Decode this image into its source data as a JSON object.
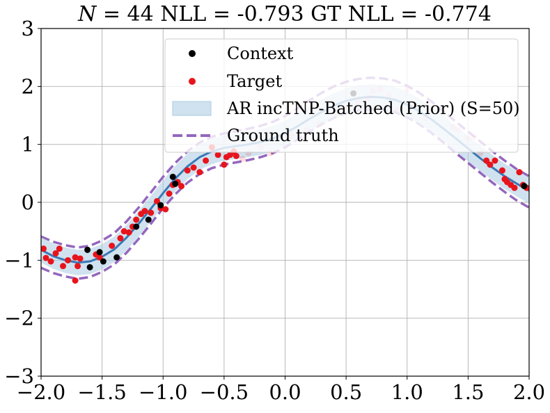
{
  "chart_data": {
    "type": "scatter",
    "title_parts": {
      "n_symbol": "N",
      "n_rest": " = 44 NLL = -0.793 GT NLL = -0.774"
    },
    "xlim": [
      -2.0,
      2.0
    ],
    "ylim": [
      -3,
      3
    ],
    "x_ticks": [
      -2.0,
      -1.5,
      -1.0,
      -0.5,
      0.0,
      0.5,
      1.0,
      1.5,
      2.0
    ],
    "y_ticks": [
      -3,
      -2,
      -1,
      0,
      1,
      2,
      3
    ],
    "x_tick_labels": [
      "−2.0",
      "−1.5",
      "−1.0",
      "−0.5",
      "0.0",
      "0.5",
      "1.0",
      "1.5",
      "2.0"
    ],
    "y_tick_labels": [
      "−3",
      "−2",
      "−1",
      "0",
      "1",
      "2",
      "3"
    ],
    "grid": true,
    "legend_position": "top-right",
    "legend": {
      "context": "Context",
      "target": "Target",
      "model": "AR incTNP-Batched (Prior) (S=50)",
      "ground_truth": "Ground truth"
    },
    "colors": {
      "context": "#000000",
      "target": "#e8141c",
      "model_mean": "#3a78b5",
      "model_band": "#a9cbe2",
      "ground_truth": "#9467bd"
    },
    "context_points": [
      [
        -1.62,
        -0.82
      ],
      [
        -1.6,
        -1.12
      ],
      [
        -1.52,
        -0.86
      ],
      [
        -1.49,
        -1.02
      ],
      [
        -1.38,
        -0.95
      ],
      [
        -1.22,
        -0.42
      ],
      [
        -1.12,
        -0.3
      ],
      [
        -1.02,
        -0.05
      ],
      [
        -0.92,
        0.44
      ],
      [
        -0.9,
        0.32
      ],
      [
        0.56,
        1.88
      ],
      [
        1.96,
        0.28
      ]
    ],
    "target_points": [
      [
        -1.98,
        -0.8
      ],
      [
        -1.96,
        -0.96
      ],
      [
        -1.92,
        -1.02
      ],
      [
        -1.88,
        -0.88
      ],
      [
        -1.85,
        -0.8
      ],
      [
        -1.82,
        -1.1
      ],
      [
        -1.78,
        -1.0
      ],
      [
        -1.72,
        -0.95
      ],
      [
        -1.72,
        -1.35
      ],
      [
        -1.7,
        -1.1
      ],
      [
        -1.68,
        -0.97
      ],
      [
        -1.55,
        -0.9
      ],
      [
        -1.52,
        -0.95
      ],
      [
        -1.42,
        -0.75
      ],
      [
        -1.35,
        -0.62
      ],
      [
        -1.32,
        -0.5
      ],
      [
        -1.28,
        -0.52
      ],
      [
        -1.25,
        -0.42
      ],
      [
        -1.22,
        -0.3
      ],
      [
        -1.18,
        -0.2
      ],
      [
        -1.15,
        -0.15
      ],
      [
        -1.1,
        -0.18
      ],
      [
        -1.05,
        0.02
      ],
      [
        -1.02,
        -0.1
      ],
      [
        -0.98,
        -0.12
      ],
      [
        -0.95,
        0.15
      ],
      [
        -0.92,
        0.3
      ],
      [
        -0.88,
        0.35
      ],
      [
        -0.85,
        0.28
      ],
      [
        -0.8,
        0.55
      ],
      [
        -0.75,
        0.6
      ],
      [
        -0.7,
        0.52
      ],
      [
        -0.65,
        0.72
      ],
      [
        -0.6,
        0.95
      ],
      [
        -0.55,
        0.82
      ],
      [
        -0.5,
        0.65
      ],
      [
        -0.48,
        0.78
      ],
      [
        -0.45,
        0.82
      ],
      [
        -0.42,
        0.88
      ],
      [
        -0.4,
        0.8
      ],
      [
        1.65,
        0.72
      ],
      [
        1.68,
        0.65
      ],
      [
        1.72,
        0.72
      ],
      [
        1.78,
        0.55
      ],
      [
        1.8,
        0.4
      ],
      [
        1.82,
        0.35
      ],
      [
        1.85,
        0.3
      ],
      [
        1.88,
        0.25
      ],
      [
        1.92,
        0.52
      ],
      [
        1.95,
        0.3
      ],
      [
        1.98,
        0.25
      ]
    ],
    "faded_points": [
      [
        -0.35,
        0.75
      ],
      [
        -0.3,
        0.85
      ],
      [
        -0.2,
        0.95
      ],
      [
        -0.12,
        0.85
      ],
      [
        0.05,
        1.15
      ],
      [
        0.18,
        1.25
      ],
      [
        0.28,
        1.35
      ],
      [
        0.42,
        1.5
      ],
      [
        0.5,
        1.62
      ],
      [
        0.6,
        1.75
      ],
      [
        0.68,
        1.8
      ],
      [
        0.72,
        1.92
      ],
      [
        0.78,
        1.95
      ],
      [
        0.85,
        1.85
      ],
      [
        0.92,
        1.6
      ],
      [
        1.0,
        1.95
      ],
      [
        1.05,
        1.7
      ],
      [
        1.15,
        1.45
      ],
      [
        1.2,
        1.62
      ],
      [
        1.3,
        1.55
      ],
      [
        1.38,
        1.3
      ],
      [
        1.42,
        1.25
      ],
      [
        1.5,
        1.1
      ],
      [
        1.55,
        1.12
      ],
      [
        1.6,
        0.85
      ]
    ],
    "ground_truth_mean": [
      [
        -2.0,
        -0.86
      ],
      [
        -1.9,
        -0.95
      ],
      [
        -1.8,
        -1.01
      ],
      [
        -1.7,
        -1.05
      ],
      [
        -1.6,
        -1.02
      ],
      [
        -1.5,
        -0.93
      ],
      [
        -1.4,
        -0.8
      ],
      [
        -1.3,
        -0.6
      ],
      [
        -1.2,
        -0.36
      ],
      [
        -1.1,
        -0.1
      ],
      [
        -1.0,
        0.17
      ],
      [
        -0.9,
        0.41
      ],
      [
        -0.8,
        0.61
      ],
      [
        -0.7,
        0.76
      ],
      [
        -0.6,
        0.86
      ],
      [
        -0.5,
        0.92
      ],
      [
        -0.4,
        0.96
      ],
      [
        -0.3,
        1.0
      ],
      [
        -0.2,
        1.05
      ],
      [
        -0.1,
        1.12
      ],
      [
        0.0,
        1.22
      ],
      [
        0.1,
        1.35
      ],
      [
        0.2,
        1.49
      ],
      [
        0.3,
        1.62
      ],
      [
        0.4,
        1.73
      ],
      [
        0.5,
        1.81
      ],
      [
        0.6,
        1.86
      ],
      [
        0.7,
        1.88
      ],
      [
        0.8,
        1.87
      ],
      [
        0.9,
        1.83
      ],
      [
        1.0,
        1.74
      ],
      [
        1.1,
        1.62
      ],
      [
        1.2,
        1.47
      ],
      [
        1.3,
        1.3
      ],
      [
        1.4,
        1.12
      ],
      [
        1.5,
        0.95
      ],
      [
        1.6,
        0.78
      ],
      [
        1.7,
        0.61
      ],
      [
        1.8,
        0.45
      ],
      [
        1.9,
        0.3
      ],
      [
        2.0,
        0.18
      ]
    ],
    "ground_truth_band_half_width": 0.27,
    "model_mean": [
      [
        -2.0,
        -0.82
      ],
      [
        -1.9,
        -0.93
      ],
      [
        -1.8,
        -1.0
      ],
      [
        -1.7,
        -1.04
      ],
      [
        -1.6,
        -1.02
      ],
      [
        -1.5,
        -0.94
      ],
      [
        -1.4,
        -0.81
      ],
      [
        -1.3,
        -0.61
      ],
      [
        -1.2,
        -0.37
      ],
      [
        -1.1,
        -0.11
      ],
      [
        -1.0,
        0.16
      ],
      [
        -0.9,
        0.41
      ],
      [
        -0.8,
        0.62
      ],
      [
        -0.7,
        0.78
      ],
      [
        -0.6,
        0.88
      ],
      [
        -0.5,
        0.94
      ],
      [
        -0.4,
        0.97
      ],
      [
        -0.3,
        1.0
      ],
      [
        -0.2,
        1.04
      ],
      [
        -0.1,
        1.1
      ],
      [
        0.0,
        1.19
      ],
      [
        0.1,
        1.31
      ],
      [
        0.2,
        1.44
      ],
      [
        0.3,
        1.56
      ],
      [
        0.4,
        1.67
      ],
      [
        0.5,
        1.75
      ],
      [
        0.6,
        1.8
      ],
      [
        0.7,
        1.82
      ],
      [
        0.8,
        1.81
      ],
      [
        0.9,
        1.77
      ],
      [
        1.0,
        1.69
      ],
      [
        1.1,
        1.57
      ],
      [
        1.2,
        1.43
      ],
      [
        1.3,
        1.27
      ],
      [
        1.4,
        1.1
      ],
      [
        1.5,
        0.93
      ],
      [
        1.6,
        0.76
      ],
      [
        1.7,
        0.6
      ],
      [
        1.8,
        0.45
      ],
      [
        1.9,
        0.32
      ],
      [
        2.0,
        0.2
      ]
    ],
    "model_band_half_width": 0.22
  }
}
